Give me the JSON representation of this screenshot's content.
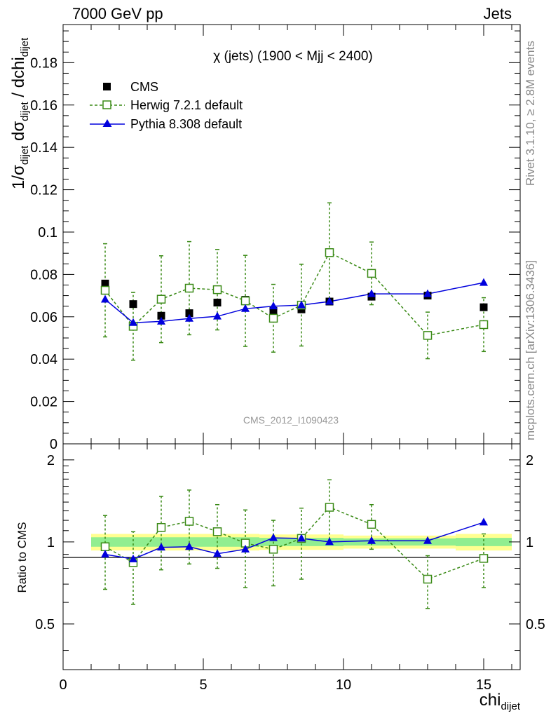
{
  "header": {
    "left": "7000 GeV pp",
    "right": "Jets"
  },
  "plot_title": "χ (jets) (1900 < Mjj < 2400)",
  "watermark": "CMS_2012_I1090423",
  "side_labels": {
    "rivet": "Rivet 3.1.10, ≥ 2.8M events",
    "mcplots": "mcplots.cern.ch [arXiv:1306.3436]"
  },
  "colors": {
    "cms": "#000000",
    "herwig": "#3a8a16",
    "pythia": "#0000dd",
    "band_inner": "#90ee90",
    "band_outer": "#ffff90"
  },
  "chart_data": [
    {
      "type": "scatter",
      "panel": "main",
      "ylabel": "1/σ dσ/dchi (dijet)",
      "ylim": [
        0,
        0.198
      ],
      "xlim": [
        0,
        16.3
      ],
      "y_ticks": [
        0,
        0.02,
        0.04,
        0.06,
        0.08,
        0.1,
        0.12,
        0.14,
        0.16,
        0.18
      ],
      "y_tick_labels": [
        "0",
        "0.02",
        "0.04",
        "0.06",
        "0.08",
        "0.1",
        "0.12",
        "0.14",
        "0.16",
        "0.18"
      ],
      "legend_position": "top-left",
      "series": [
        {
          "name": "CMS",
          "style": "markers",
          "marker": "filled-square",
          "x": [
            1.5,
            2.5,
            3.5,
            4.5,
            5.5,
            6.5,
            7.5,
            8.5,
            9.5,
            11,
            13,
            15
          ],
          "y": [
            0.0757,
            0.066,
            0.0605,
            0.0617,
            0.0667,
            0.068,
            0.0628,
            0.0635,
            0.0672,
            0.0695,
            0.07,
            0.0645
          ]
        },
        {
          "name": "Herwig 7.2.1 default",
          "style": "dashed-line",
          "marker": "open-square",
          "x": [
            1.5,
            2.5,
            3.5,
            4.5,
            5.5,
            6.5,
            7.5,
            8.5,
            9.5,
            11,
            13,
            15
          ],
          "y": [
            0.0725,
            0.0555,
            0.0683,
            0.0735,
            0.0728,
            0.0675,
            0.0593,
            0.0655,
            0.0903,
            0.0805,
            0.0512,
            0.0563
          ],
          "y_err": [
            0.022,
            0.016,
            0.0205,
            0.022,
            0.019,
            0.0215,
            0.016,
            0.0193,
            0.0235,
            0.0148,
            0.011,
            0.0127
          ]
        },
        {
          "name": "Pythia 8.308 default",
          "style": "solid-line",
          "marker": "filled-triangle",
          "x": [
            1.5,
            2.5,
            3.5,
            4.5,
            5.5,
            6.5,
            7.5,
            8.5,
            9.5,
            11,
            13,
            15
          ],
          "y": [
            0.0682,
            0.0572,
            0.0578,
            0.0592,
            0.0602,
            0.0638,
            0.065,
            0.0655,
            0.0672,
            0.0708,
            0.0708,
            0.0761
          ]
        }
      ]
    },
    {
      "type": "scatter",
      "panel": "ratio",
      "ylabel": "Ratio to CMS",
      "xlabel": "chi (dijet)",
      "xlim": [
        0,
        16.3
      ],
      "ylim": [
        0.34,
        2.29
      ],
      "x_ticks": [
        0,
        5,
        10,
        15
      ],
      "x_tick_labels": [
        "0",
        "5",
        "10",
        "15"
      ],
      "y_ticks": [
        0.5,
        1,
        2
      ],
      "y_tick_labels": [
        "0.5",
        "1",
        "2"
      ],
      "bands": {
        "x_edges": [
          1,
          2,
          3,
          4,
          5,
          6,
          7,
          8,
          9,
          10,
          12,
          14,
          16
        ],
        "inner_lo": [
          0.96,
          0.96,
          0.96,
          0.96,
          0.96,
          0.96,
          0.965,
          0.965,
          0.965,
          0.97,
          0.97,
          0.965
        ],
        "inner_hi": [
          1.04,
          1.04,
          1.04,
          1.04,
          1.04,
          1.04,
          1.035,
          1.035,
          1.035,
          1.03,
          1.03,
          1.035
        ],
        "outer_lo": [
          0.93,
          0.93,
          0.93,
          0.93,
          0.93,
          0.93,
          0.935,
          0.935,
          0.935,
          0.945,
          0.945,
          0.93
        ],
        "outer_hi": [
          1.07,
          1.07,
          1.07,
          1.07,
          1.07,
          1.07,
          1.065,
          1.065,
          1.065,
          1.055,
          1.055,
          1.07
        ]
      },
      "series": [
        {
          "name": "Herwig 7.2.1 default",
          "x": [
            1.5,
            2.5,
            3.5,
            4.5,
            5.5,
            6.5,
            7.5,
            8.5,
            9.5,
            11,
            13,
            15
          ],
          "y": [
            0.96,
            0.84,
            1.13,
            1.19,
            1.09,
            0.99,
            0.94,
            1.03,
            1.34,
            1.16,
            0.73,
            0.87
          ],
          "y_lo": [
            0.67,
            0.59,
            0.79,
            0.83,
            0.8,
            0.68,
            0.69,
            0.73,
            0.99,
            0.94,
            0.57,
            0.68
          ],
          "y_hi": [
            1.25,
            1.09,
            1.47,
            1.55,
            1.37,
            1.31,
            1.2,
            1.33,
            1.69,
            1.37,
            0.89,
            1.07
          ]
        },
        {
          "name": "Pythia 8.308 default",
          "x": [
            1.5,
            2.5,
            3.5,
            4.5,
            5.5,
            6.5,
            7.5,
            8.5,
            9.5,
            11,
            13,
            15
          ],
          "y": [
            0.9,
            0.865,
            0.955,
            0.96,
            0.905,
            0.94,
            1.035,
            1.03,
            1.0,
            1.01,
            1.01,
            1.18
          ]
        }
      ]
    }
  ]
}
